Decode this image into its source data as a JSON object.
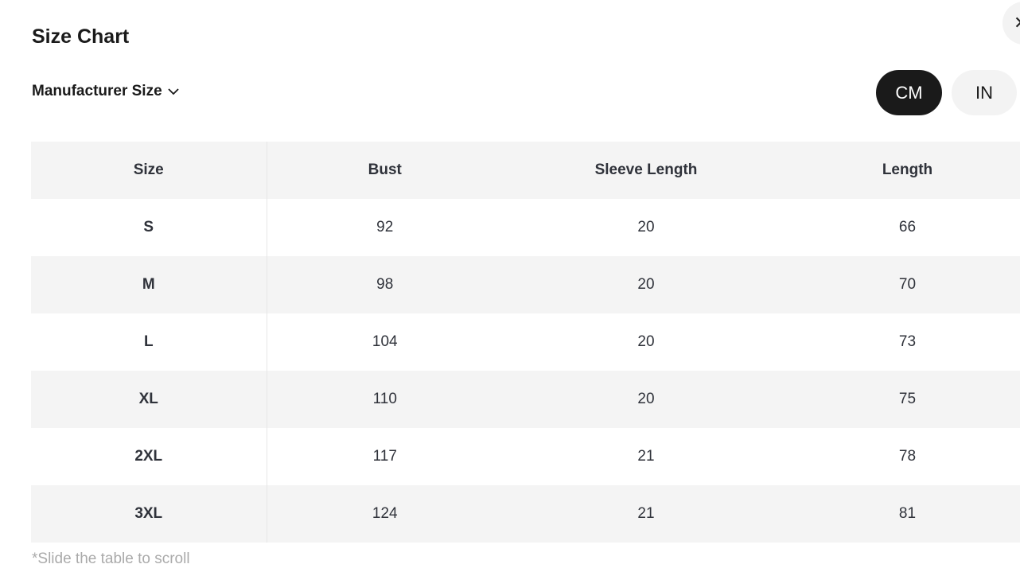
{
  "title": "Size Chart",
  "close_icon": "close-icon",
  "size_system": "Manufacturer Size",
  "units": {
    "cm": "CM",
    "in": "IN",
    "selected": "CM"
  },
  "table": {
    "headers": [
      "Size",
      "Bust",
      "Sleeve Length",
      "Length"
    ],
    "rows": [
      [
        "S",
        "92",
        "20",
        "66"
      ],
      [
        "M",
        "98",
        "20",
        "70"
      ],
      [
        "L",
        "104",
        "20",
        "73"
      ],
      [
        "XL",
        "110",
        "20",
        "75"
      ],
      [
        "2XL",
        "117",
        "21",
        "78"
      ],
      [
        "3XL",
        "124",
        "21",
        "81"
      ]
    ]
  },
  "note": "*Slide the table to scroll"
}
